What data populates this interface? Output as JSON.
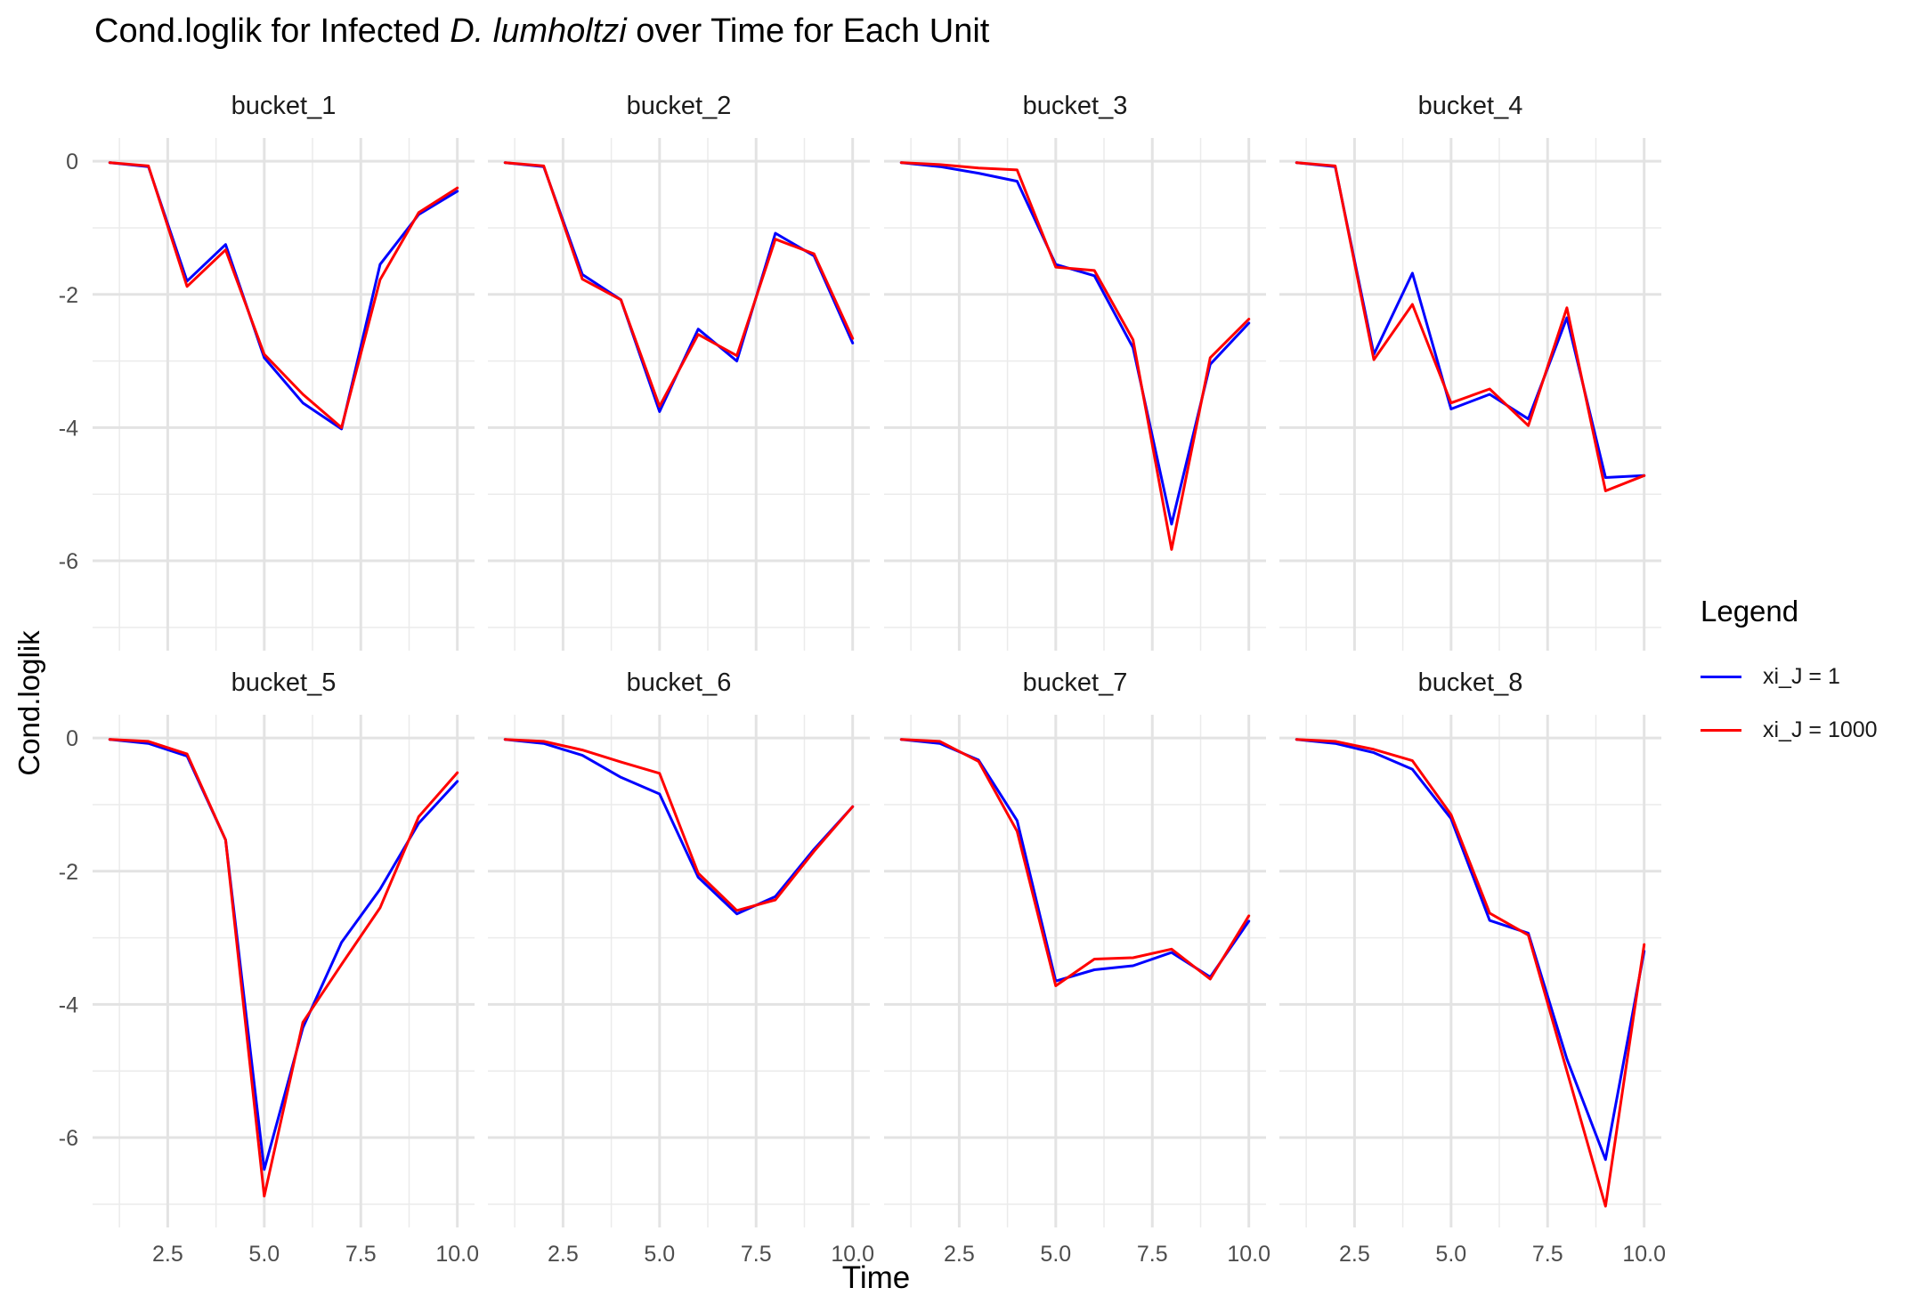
{
  "title": {
    "prefix": "Cond.loglik for Infected ",
    "species": "D. lumholtzi",
    "suffix": " over Time for Each Unit"
  },
  "chart_data": {
    "type": "line",
    "facets": [
      "bucket_1",
      "bucket_2",
      "bucket_3",
      "bucket_4",
      "bucket_5",
      "bucket_6",
      "bucket_7",
      "bucket_8"
    ],
    "xlabel": "Time",
    "ylabel": "Cond.loglik",
    "xlim": [
      1,
      10
    ],
    "ylim": [
      -7,
      0
    ],
    "xticks": [
      "2.5",
      "5.0",
      "7.5",
      "10.0"
    ],
    "yticks": [
      "0",
      "-2",
      "-4",
      "-6"
    ],
    "legend": {
      "title": "Legend",
      "entries": [
        {
          "name": "xi_J = 1",
          "color": "#0000ff"
        },
        {
          "name": "xi_J = 1000",
          "color": "#ff0000"
        }
      ],
      "placement": "right"
    },
    "grid": true,
    "x": [
      1,
      2,
      3,
      4,
      5,
      6,
      7,
      8,
      9,
      10
    ],
    "series": [
      {
        "name": "xi_J = 1",
        "color": "#0000ff",
        "panels": [
          [
            -0.02,
            -0.08,
            -1.8,
            -1.25,
            -2.95,
            -3.63,
            -4.02,
            -1.55,
            -0.8,
            -0.45
          ],
          [
            -0.02,
            -0.08,
            -1.7,
            -2.08,
            -3.76,
            -2.52,
            -3.0,
            -1.08,
            -1.42,
            -2.73
          ],
          [
            -0.02,
            -0.08,
            -0.18,
            -0.3,
            -1.55,
            -1.72,
            -2.8,
            -5.45,
            -3.05,
            -2.43
          ],
          [
            -0.02,
            -0.08,
            -2.9,
            -1.68,
            -3.72,
            -3.5,
            -3.87,
            -2.35,
            -4.75,
            -4.72
          ],
          [
            -0.02,
            -0.08,
            -0.27,
            -1.53,
            -6.48,
            -4.35,
            -3.07,
            -2.27,
            -1.28,
            -0.65
          ],
          [
            -0.02,
            -0.08,
            -0.26,
            -0.59,
            -0.84,
            -2.09,
            -2.64,
            -2.38,
            -1.67,
            -1.03
          ],
          [
            -0.02,
            -0.08,
            -0.33,
            -1.24,
            -3.65,
            -3.48,
            -3.42,
            -3.22,
            -3.59,
            -2.75
          ],
          [
            -0.02,
            -0.08,
            -0.22,
            -0.47,
            -1.21,
            -2.74,
            -2.93,
            -4.82,
            -6.33,
            -3.2
          ]
        ]
      },
      {
        "name": "xi_J = 1000",
        "color": "#ff0000",
        "panels": [
          [
            -0.02,
            -0.07,
            -1.88,
            -1.33,
            -2.9,
            -3.5,
            -4.0,
            -1.78,
            -0.77,
            -0.4
          ],
          [
            -0.02,
            -0.07,
            -1.77,
            -2.08,
            -3.68,
            -2.6,
            -2.92,
            -1.17,
            -1.39,
            -2.66
          ],
          [
            -0.02,
            -0.05,
            -0.1,
            -0.13,
            -1.59,
            -1.64,
            -2.68,
            -5.83,
            -2.95,
            -2.37
          ],
          [
            -0.02,
            -0.07,
            -2.98,
            -2.15,
            -3.63,
            -3.42,
            -3.97,
            -2.2,
            -4.95,
            -4.72
          ],
          [
            -0.02,
            -0.05,
            -0.24,
            -1.53,
            -6.88,
            -4.27,
            -3.4,
            -2.55,
            -1.18,
            -0.52
          ],
          [
            -0.02,
            -0.05,
            -0.18,
            -0.36,
            -0.53,
            -2.03,
            -2.59,
            -2.43,
            -1.7,
            -1.03
          ],
          [
            -0.02,
            -0.05,
            -0.35,
            -1.4,
            -3.72,
            -3.32,
            -3.3,
            -3.17,
            -3.62,
            -2.67
          ],
          [
            -0.02,
            -0.05,
            -0.17,
            -0.34,
            -1.15,
            -2.63,
            -2.96,
            -5.0,
            -7.03,
            -3.1
          ]
        ]
      }
    ]
  }
}
